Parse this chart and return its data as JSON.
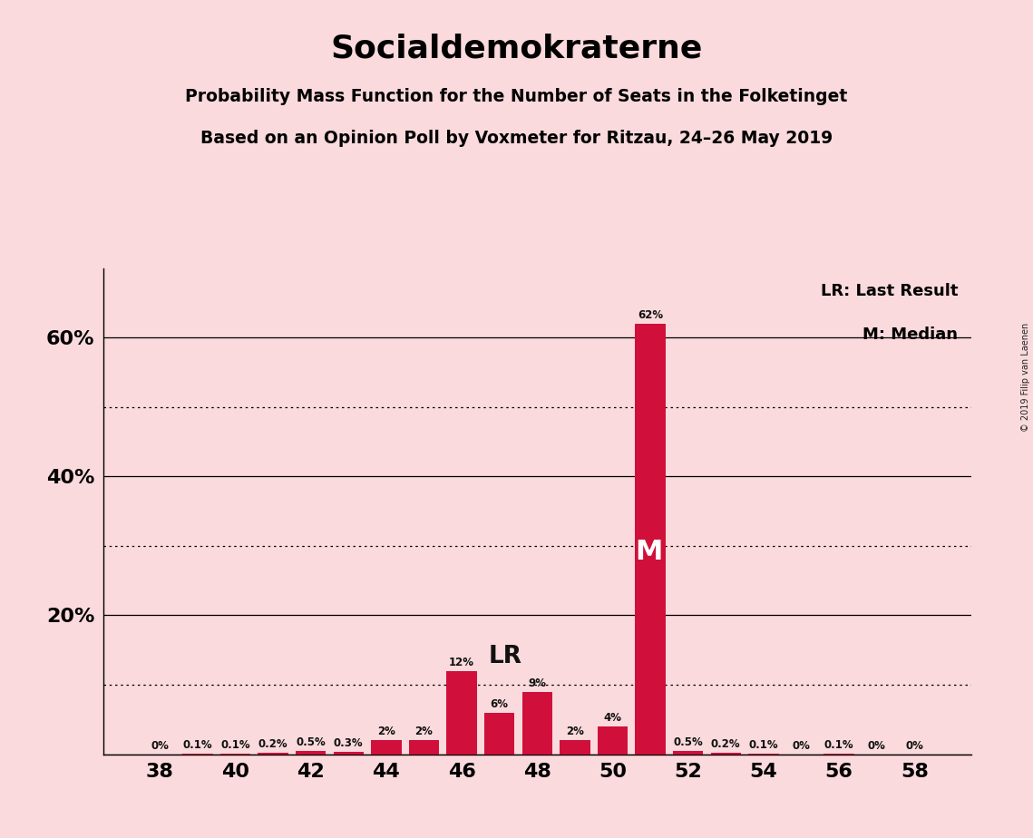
{
  "title": "Socialdemokraterne",
  "subtitle1": "Probability Mass Function for the Number of Seats in the Folketinget",
  "subtitle2": "Based on an Opinion Poll by Voxmeter for Ritzau, 24–26 May 2019",
  "copyright": "© 2019 Filip van Laenen",
  "seats": [
    38,
    39,
    40,
    41,
    42,
    43,
    44,
    45,
    46,
    47,
    48,
    49,
    50,
    51,
    52,
    53,
    54,
    55,
    56,
    57,
    58
  ],
  "values": [
    0.0,
    0.1,
    0.1,
    0.2,
    0.5,
    0.3,
    2.0,
    2.0,
    12.0,
    6.0,
    9.0,
    2.0,
    4.0,
    62.0,
    0.5,
    0.2,
    0.1,
    0.0,
    0.1,
    0.0,
    0.0
  ],
  "labels": [
    "0%",
    "0.1%",
    "0.1%",
    "0.2%",
    "0.5%",
    "0.3%",
    "2%",
    "2%",
    "12%",
    "6%",
    "9%",
    "2%",
    "4%",
    "62%",
    "0.5%",
    "0.2%",
    "0.1%",
    "0%",
    "0.1%",
    "0%",
    "0%"
  ],
  "bar_color": "#D0103A",
  "background_color": "#FADADD",
  "lr_seat": 46,
  "median_seat": 51,
  "ylim_max": 70,
  "solid_ylines": [
    0,
    20,
    40,
    60
  ],
  "dotted_ylines": [
    10,
    30,
    50
  ],
  "ytick_positions": [
    20,
    40,
    60
  ],
  "ytick_labels": [
    "20%",
    "40%",
    "60%"
  ],
  "xticks": [
    38,
    40,
    42,
    44,
    46,
    48,
    50,
    52,
    54,
    56,
    58
  ]
}
